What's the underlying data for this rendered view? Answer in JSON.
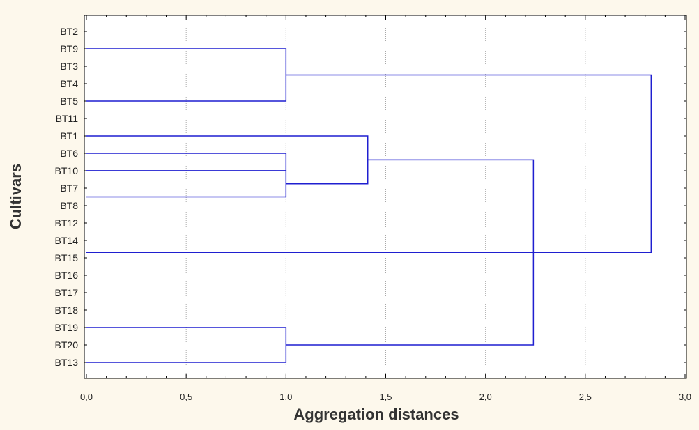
{
  "chart_data": {
    "type": "dendrogram",
    "orientation": "horizontal",
    "xlabel": "Aggregation distances",
    "ylabel": "Cultivars",
    "xlim": [
      0,
      3.0
    ],
    "x_ticks": [
      "0,0",
      "0,5",
      "1,0",
      "1,5",
      "2,0",
      "2,5",
      "3,0"
    ],
    "x_tick_values": [
      0,
      0.5,
      1.0,
      1.5,
      2.0,
      2.5,
      3.0
    ],
    "grid": "vertical dotted",
    "leaves": [
      "BT2",
      "BT9",
      "BT3",
      "BT4",
      "BT5",
      "BT11",
      "BT1",
      "BT6",
      "BT10",
      "BT7",
      "BT8",
      "BT12",
      "BT14",
      "BT15",
      "BT16",
      "BT17",
      "BT18",
      "BT19",
      "BT20",
      "BT13"
    ],
    "merges": [
      {
        "a_index": 1,
        "b_index": 4,
        "distance": 1.0
      },
      {
        "a_index": 7,
        "b_index": 8,
        "distance": 1.0
      },
      {
        "a_index": 8,
        "b_index": 9.5,
        "distance": 1.0
      },
      {
        "a_index": 6,
        "b_index": 8.75,
        "distance": 1.41
      },
      {
        "a_index": 17,
        "b_index": 19,
        "distance": 1.0
      },
      {
        "a_index": 7.375,
        "b_index": 18,
        "distance": 2.24
      },
      {
        "a_index": 2.5,
        "b_index": 12.69,
        "distance": 2.83
      }
    ],
    "colors": {
      "line": "#1f1fd0",
      "background": "#fdf8ec",
      "plot": "#ffffff",
      "grid": "#a8a8a8"
    }
  }
}
